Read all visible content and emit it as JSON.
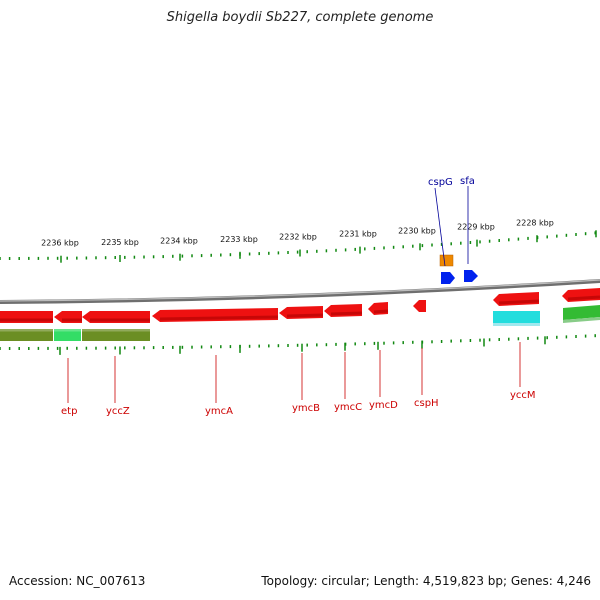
{
  "title": "Shigella boydii Sb227, complete genome",
  "footer": {
    "accession": "Accession: NC_007613",
    "summary": "Topology: circular; Length: 4,519,823 bp; Genes: 4,246"
  },
  "ticks": [
    "2236 kbp",
    "2235 kbp",
    "2234 kbp",
    "2233 kbp",
    "2232 kbp",
    "2231 kbp",
    "2230 kbp",
    "2229 kbp",
    "2228 kbp"
  ],
  "genes_bottom": [
    "etp",
    "yccZ",
    "ymcA",
    "ymcB",
    "ymcC",
    "ymcD",
    "cspH",
    "yccM"
  ],
  "genes_top": [
    "cspG",
    "sfa"
  ],
  "colors": {
    "cds": "#ee1111",
    "gene_track": "#6b8e23",
    "gene_track_light": "#33dd66",
    "green_track": "#33bb33",
    "cyan": "#22dddd",
    "orange": "#ee8800",
    "blue": "#0022ee",
    "backbone": "#888888",
    "tick": "#118811"
  }
}
